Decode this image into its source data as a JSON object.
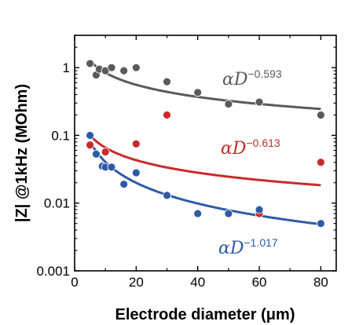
{
  "chart_data": {
    "type": "scatter",
    "title": "",
    "xlabel": "Electrode diameter (μm)",
    "ylabel": "|Z| @1kHz (MOhm)",
    "xlim": [
      0,
      85
    ],
    "ylim": [
      0.001,
      3
    ],
    "yscale": "log",
    "x_ticks": [
      "0",
      "20",
      "40",
      "60",
      "80"
    ],
    "y_ticks": [
      "0.001",
      "0.01",
      "0.1",
      "1"
    ],
    "series": [
      {
        "color": "#5a5a5a",
        "points": [
          [
            5,
            1.15
          ],
          [
            7,
            0.78
          ],
          [
            8,
            0.95
          ],
          [
            10,
            0.9
          ],
          [
            12,
            1.0
          ],
          [
            16,
            0.9
          ],
          [
            20,
            1.0
          ],
          [
            30,
            0.62
          ],
          [
            40,
            0.43
          ],
          [
            50,
            0.29
          ],
          [
            60,
            0.31
          ],
          [
            80,
            0.2
          ]
        ],
        "fit": {
          "text": "αD",
          "exponent": "−0.593",
          "power": -0.593,
          "amp": 3.3
        }
      },
      {
        "color": "#c92a2a",
        "points": [
          [
            5,
            0.072
          ],
          [
            10,
            0.057
          ],
          [
            20,
            0.075
          ],
          [
            30,
            0.2
          ],
          [
            60,
            0.007
          ],
          [
            80,
            0.04
          ]
        ],
        "fit": {
          "text": "αD",
          "exponent": "−0.613",
          "power": -0.613,
          "amp": 0.27
        }
      },
      {
        "color": "#2f5aa8",
        "points": [
          [
            5,
            0.1
          ],
          [
            7,
            0.053
          ],
          [
            9,
            0.035
          ],
          [
            10,
            0.034
          ],
          [
            12,
            0.034
          ],
          [
            16,
            0.019
          ],
          [
            20,
            0.028
          ],
          [
            30,
            0.013
          ],
          [
            40,
            0.007
          ],
          [
            50,
            0.007
          ],
          [
            60,
            0.008
          ],
          [
            80,
            0.005
          ]
        ],
        "fit": {
          "text": "αD",
          "exponent": "−1.017",
          "power": -1.017,
          "amp": 0.42
        }
      }
    ]
  }
}
